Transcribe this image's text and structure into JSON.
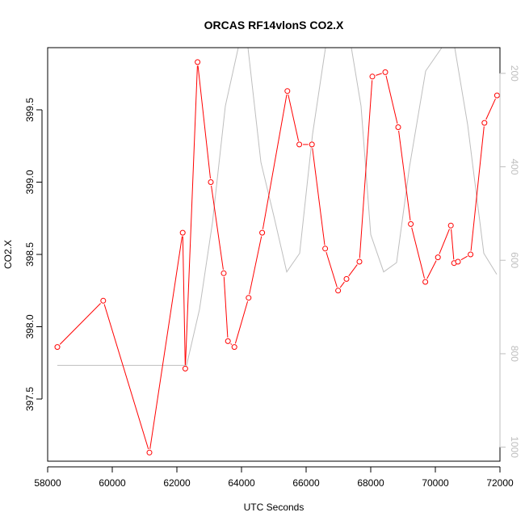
{
  "chart_data": {
    "type": "line",
    "title": "ORCAS RF14vlonS CO2.X",
    "xlabel": "UTC Seconds",
    "ylabel": "CO2.X",
    "xlim": [
      58000,
      72000
    ],
    "ylim": [
      397.07,
      399.93
    ],
    "x_ticks": [
      "58000",
      "60000",
      "62000",
      "64000",
      "66000",
      "68000",
      "70000",
      "72000"
    ],
    "y_ticks": [
      "397.5",
      "398.0",
      "398.5",
      "399.0",
      "399.5"
    ],
    "y2_ticks": [
      "200",
      "400",
      "600",
      "800",
      "1000"
    ],
    "y2lim": [
      1030,
      145
    ],
    "y2_reversed": true,
    "grid": false,
    "legend": "none",
    "colors": {
      "primary": "#ff0000",
      "secondary": "#bebebe"
    },
    "series": [
      {
        "x": [
          58300,
          59720,
          61150,
          62180,
          62260,
          62640,
          63050,
          63450,
          63580,
          63780,
          64220,
          64640,
          65420,
          65790,
          66180,
          66590,
          66990,
          67250,
          67650,
          68050,
          68450,
          68850,
          69240,
          69690,
          70080,
          70480,
          70580,
          70700,
          71090,
          71520,
          71910
        ],
        "y": [
          397.86,
          398.18,
          397.13,
          398.65,
          397.71,
          399.83,
          399.0,
          398.37,
          397.9,
          397.86,
          398.2,
          398.65,
          399.63,
          399.26,
          399.26,
          398.54,
          398.25,
          398.33,
          398.45,
          399.73,
          399.76,
          399.38,
          398.71,
          398.31,
          398.48,
          398.7,
          398.44,
          398.45,
          398.5,
          399.41,
          399.6
        ]
      },
      {
        "x": [
          58300,
          62300,
          62700,
          63100,
          63500,
          63900,
          64200,
          64600,
          65000,
          65400,
          65800,
          66200,
          66600,
          67000,
          67400,
          67700,
          68000,
          68400,
          68800,
          69200,
          69700,
          70200,
          70600,
          71000,
          71500,
          71900
        ],
        "y": [
          825,
          825,
          705,
          520,
          270,
          80,
          80,
          390,
          505,
          625,
          585,
          330,
          130,
          80,
          80,
          270,
          545,
          625,
          605,
          400,
          195,
          80,
          80,
          310,
          585,
          630
        ]
      }
    ]
  }
}
